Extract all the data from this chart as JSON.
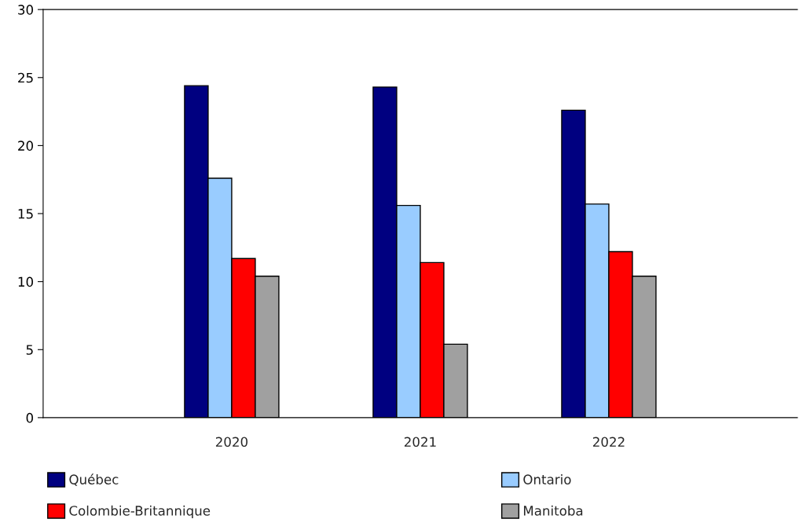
{
  "chart_data": {
    "type": "bar",
    "categories": [
      "2020",
      "2021",
      "2022"
    ],
    "series": [
      {
        "name": "Québec",
        "color": "#000080",
        "values": [
          24.4,
          24.3,
          22.6
        ]
      },
      {
        "name": "Ontario",
        "color": "#99ccff",
        "values": [
          17.6,
          15.6,
          15.7
        ]
      },
      {
        "name": "Colombie-Britannique",
        "color": "#ff0000",
        "values": [
          11.7,
          11.4,
          12.2
        ]
      },
      {
        "name": "Manitoba",
        "color": "#a0a0a0",
        "values": [
          10.4,
          5.4,
          10.4
        ]
      }
    ],
    "ylim": [
      0,
      30
    ],
    "yticks": [
      0,
      5,
      10,
      15,
      20,
      25,
      30
    ],
    "grid": false,
    "legend": "bottom"
  }
}
